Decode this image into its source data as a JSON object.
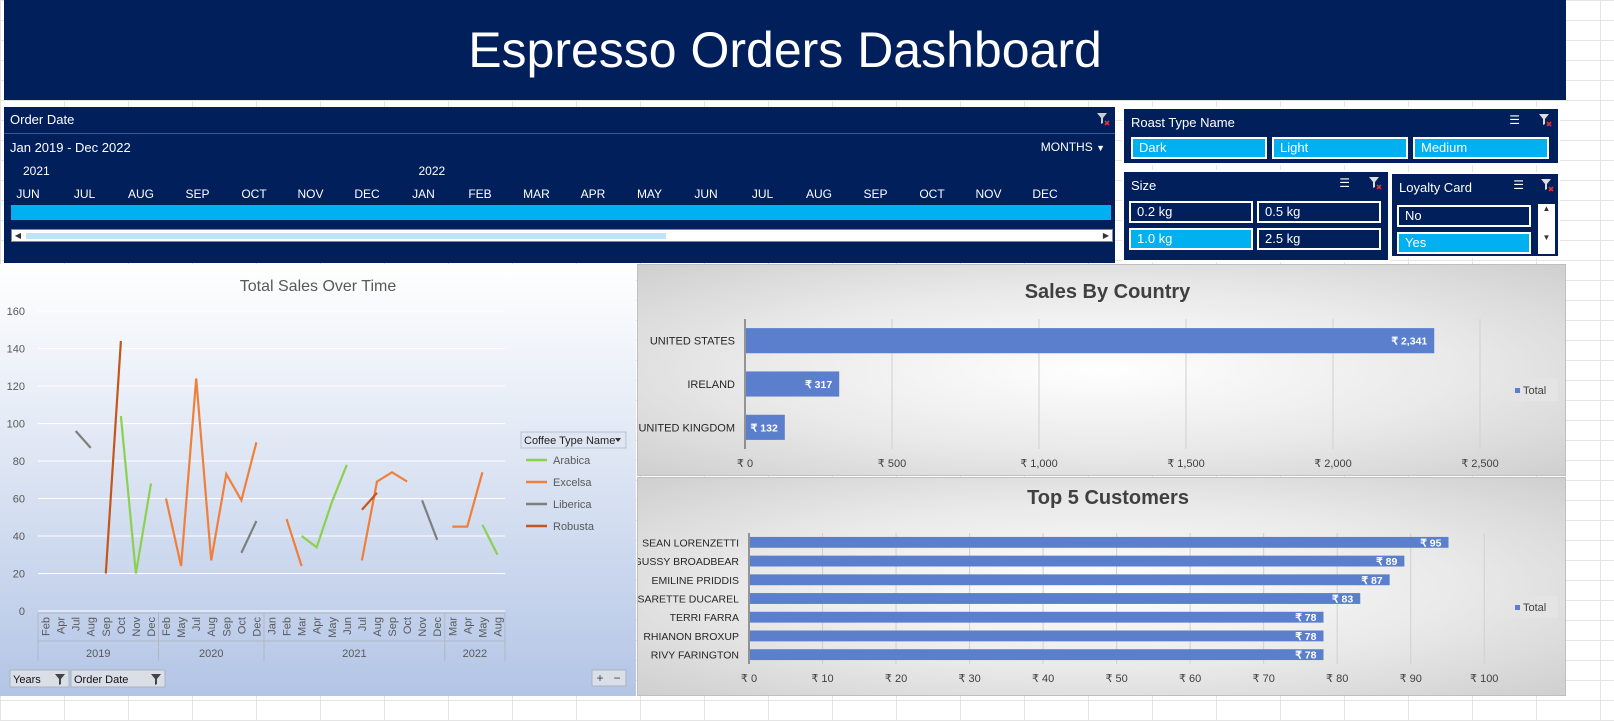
{
  "header": {
    "title": "Espresso Orders Dashboard"
  },
  "timeline": {
    "label": "Order Date",
    "range": "Jan 2019 - Dec 2022",
    "level": "MONTHS",
    "years": [
      {
        "label": "2021",
        "at": 0
      },
      {
        "label": "2022",
        "at": 7
      }
    ],
    "months": [
      "JUN",
      "JUL",
      "AUG",
      "SEP",
      "OCT",
      "NOV",
      "DEC",
      "JAN",
      "FEB",
      "MAR",
      "APR",
      "MAY",
      "JUN",
      "JUL",
      "AUG",
      "SEP",
      "OCT",
      "NOV",
      "DEC"
    ]
  },
  "slicers": {
    "roast": {
      "label": "Roast Type Name",
      "items": [
        {
          "label": "Dark",
          "selected": true
        },
        {
          "label": "Light",
          "selected": true
        },
        {
          "label": "Medium",
          "selected": true
        }
      ]
    },
    "size": {
      "label": "Size",
      "items": [
        {
          "label": "0.2 kg",
          "selected": false
        },
        {
          "label": "0.5 kg",
          "selected": false
        },
        {
          "label": "1.0 kg",
          "selected": true
        },
        {
          "label": "2.5 kg",
          "selected": false
        }
      ]
    },
    "loyalty": {
      "label": "Loyalty Card",
      "items": [
        {
          "label": "No",
          "selected": false
        },
        {
          "label": "Yes",
          "selected": true
        }
      ]
    }
  },
  "colors": {
    "navy": "#011f5b",
    "accent": "#00b0f0",
    "bar": "#5b7fcd",
    "arabica": "#8bd14f",
    "excelsa": "#f07f3c",
    "liberica": "#7f7f7f",
    "robusta": "#c5561b"
  },
  "icons": {
    "filter_clear": "filter-clear-icon",
    "multi_select": "multi-select-icon"
  },
  "chart_data": [
    {
      "type": "line",
      "title": "Total Sales Over Time",
      "xlabel": "",
      "ylabel": "",
      "ylim": [
        0,
        160
      ],
      "yticks": [
        0,
        20,
        40,
        60,
        80,
        100,
        120,
        140,
        160
      ],
      "categories": [
        {
          "year": "2019",
          "month": "Feb"
        },
        {
          "year": "2019",
          "month": "Apr"
        },
        {
          "year": "2019",
          "month": "Jul"
        },
        {
          "year": "2019",
          "month": "Aug"
        },
        {
          "year": "2019",
          "month": "Sep"
        },
        {
          "year": "2019",
          "month": "Oct"
        },
        {
          "year": "2019",
          "month": "Nov"
        },
        {
          "year": "2019",
          "month": "Dec"
        },
        {
          "year": "2020",
          "month": "Feb"
        },
        {
          "year": "2020",
          "month": "May"
        },
        {
          "year": "2020",
          "month": "Jul"
        },
        {
          "year": "2020",
          "month": "Aug"
        },
        {
          "year": "2020",
          "month": "Sep"
        },
        {
          "year": "2020",
          "month": "Oct"
        },
        {
          "year": "2020",
          "month": "Dec"
        },
        {
          "year": "2021",
          "month": "Jan"
        },
        {
          "year": "2021",
          "month": "Feb"
        },
        {
          "year": "2021",
          "month": "Mar"
        },
        {
          "year": "2021",
          "month": "Apr"
        },
        {
          "year": "2021",
          "month": "May"
        },
        {
          "year": "2021",
          "month": "Jun"
        },
        {
          "year": "2021",
          "month": "Jul"
        },
        {
          "year": "2021",
          "month": "Aug"
        },
        {
          "year": "2021",
          "month": "Sep"
        },
        {
          "year": "2021",
          "month": "Oct"
        },
        {
          "year": "2021",
          "month": "Nov"
        },
        {
          "year": "2021",
          "month": "Dec"
        },
        {
          "year": "2022",
          "month": "Mar"
        },
        {
          "year": "2022",
          "month": "Apr"
        },
        {
          "year": "2022",
          "month": "May"
        },
        {
          "year": "2022",
          "month": "Aug"
        }
      ],
      "years": [
        {
          "label": "2019",
          "count": 8
        },
        {
          "label": "2020",
          "count": 7
        },
        {
          "label": "2021",
          "count": 12
        },
        {
          "label": "2022",
          "count": 4
        }
      ],
      "legend_title": "Coffee Type Name",
      "legend_position": "right",
      "series": [
        {
          "name": "Arabica",
          "color": "#8bd14f",
          "values": [
            null,
            null,
            null,
            null,
            null,
            104,
            20,
            68,
            null,
            null,
            null,
            null,
            null,
            null,
            null,
            null,
            null,
            40,
            34,
            58,
            78,
            null,
            null,
            null,
            null,
            null,
            null,
            null,
            null,
            46,
            30
          ]
        },
        {
          "name": "Excelsa",
          "color": "#f07f3c",
          "values": [
            null,
            null,
            null,
            null,
            null,
            null,
            null,
            null,
            60,
            24,
            124,
            27,
            73,
            59,
            90,
            null,
            49,
            24,
            null,
            null,
            null,
            27,
            69,
            74,
            69,
            null,
            null,
            45,
            45,
            74,
            null
          ]
        },
        {
          "name": "Liberica",
          "color": "#7f7f7f",
          "values": [
            null,
            null,
            96,
            87,
            null,
            null,
            null,
            null,
            null,
            null,
            null,
            null,
            null,
            31,
            48,
            null,
            null,
            null,
            null,
            null,
            null,
            null,
            null,
            null,
            null,
            59,
            38,
            null,
            null,
            null,
            null
          ]
        },
        {
          "name": "Robusta",
          "color": "#c5561b",
          "values": [
            null,
            null,
            null,
            null,
            20,
            144,
            null,
            null,
            null,
            null,
            null,
            null,
            null,
            null,
            null,
            null,
            null,
            null,
            null,
            null,
            null,
            54,
            63,
            null,
            null,
            null,
            null,
            null,
            null,
            null,
            null
          ]
        }
      ],
      "field_buttons": [
        "Years",
        "Order Date"
      ]
    },
    {
      "type": "bar",
      "orientation": "horizontal",
      "title": "Sales By Country",
      "categories": [
        "UNITED STATES",
        "IRELAND",
        "UNITED KINGDOM"
      ],
      "values": [
        2341,
        317,
        132
      ],
      "data_labels": [
        "₹ 2,341",
        "₹ 317",
        "₹ 132"
      ],
      "xlim": [
        0,
        2500
      ],
      "xticks": [
        0,
        500,
        1000,
        1500,
        2000,
        2500
      ],
      "xtick_labels": [
        "₹ 0",
        "₹ 500",
        "₹ 1,000",
        "₹ 1,500",
        "₹ 2,000",
        "₹ 2,500"
      ],
      "legend": "Total",
      "legend_position": "right"
    },
    {
      "type": "bar",
      "orientation": "horizontal",
      "title": "Top 5 Customers",
      "categories": [
        "SEAN LORENZETTI",
        "GUSSY BROADBEAR",
        "EMILINE PRIDDIS",
        "SARETTE DUCAREL",
        "TERRI FARRA",
        "RHIANON BROXUP",
        "RIVY FARINGTON"
      ],
      "values": [
        95,
        89,
        87,
        83,
        78,
        78,
        78
      ],
      "data_labels": [
        "₹ 95",
        "₹ 89",
        "₹ 87",
        "₹ 83",
        "₹ 78",
        "₹ 78",
        "₹ 78"
      ],
      "xlim": [
        0,
        105
      ],
      "xticks": [
        0,
        10,
        20,
        30,
        40,
        50,
        60,
        70,
        80,
        90,
        100
      ],
      "xtick_labels": [
        "₹ 0",
        "₹ 10",
        "₹ 20",
        "₹ 30",
        "₹ 40",
        "₹ 50",
        "₹ 60",
        "₹ 70",
        "₹ 80",
        "₹ 90",
        "₹ 100"
      ],
      "legend": "Total",
      "legend_position": "right"
    }
  ]
}
